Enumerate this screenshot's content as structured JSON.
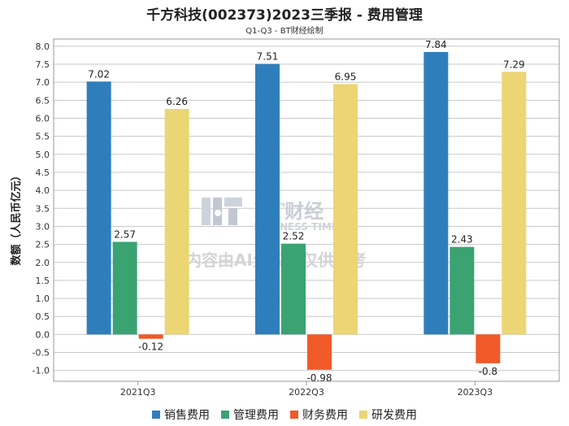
{
  "title": "千方科技(002373)2023三季报 - 费用管理",
  "subtitle": "Q1-Q3 - BT财经绘制",
  "watermark": {
    "logo_text": "BT财经",
    "logo_sub": "BUSINESS TIMES",
    "note": "内容由AI生成，仅供参考"
  },
  "chart_data": {
    "type": "bar",
    "title": "千方科技(002373)2023三季报 - 费用管理",
    "subtitle": "Q1-Q3 - BT财经绘制",
    "xlabel": "",
    "ylabel": "数额（人民币亿元）",
    "ylim": [
      -1.3,
      8.2
    ],
    "yticks": [
      -1.0,
      -0.5,
      0.0,
      0.5,
      1.0,
      1.5,
      2.0,
      2.5,
      3.0,
      3.5,
      4.0,
      4.5,
      5.0,
      5.5,
      6.0,
      6.5,
      7.0,
      7.5,
      8.0
    ],
    "ytick_labels": [
      "-1.0",
      "-0.5",
      "0.0",
      "0.5",
      "1.0",
      "1.5",
      "2.0",
      "2.5",
      "3.0",
      "3.5",
      "4.0",
      "4.5",
      "5.0",
      "5.5",
      "6.0",
      "6.5",
      "7.0",
      "7.5",
      "8.0"
    ],
    "grid": true,
    "legend_position": "bottom",
    "categories": [
      "2021Q3",
      "2022Q3",
      "2023Q3"
    ],
    "series": [
      {
        "name": "销售费用",
        "color": "#2f7ebc",
        "values": [
          7.02,
          7.51,
          7.84
        ],
        "labels": [
          "7.02",
          "7.51",
          "7.84"
        ]
      },
      {
        "name": "管理费用",
        "color": "#3ba272",
        "values": [
          2.57,
          2.52,
          2.43
        ],
        "labels": [
          "2.57",
          "2.52",
          "2.43"
        ]
      },
      {
        "name": "财务费用",
        "color": "#f05a28",
        "values": [
          -0.12,
          -0.98,
          -0.8
        ],
        "labels": [
          "-0.12",
          "-0.98",
          "-0.8"
        ]
      },
      {
        "name": "研发费用",
        "color": "#ecd574",
        "values": [
          6.26,
          6.95,
          7.29
        ],
        "labels": [
          "6.26",
          "6.95",
          "7.29"
        ]
      }
    ]
  }
}
